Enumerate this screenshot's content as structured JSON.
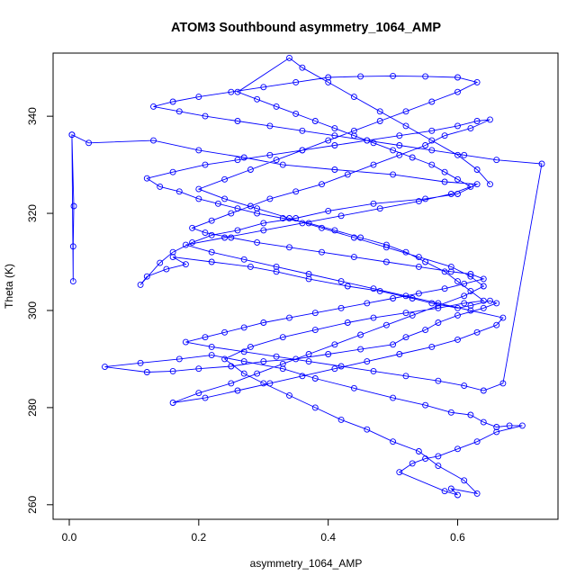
{
  "chart_data": {
    "type": "scatter",
    "title": "ATOM3 Southbound asymmetry_1064_AMP",
    "xlabel": "asymmetry_1064_AMP",
    "ylabel": "Theta (K)",
    "xlim": [
      -0.025,
      0.755
    ],
    "ylim": [
      257,
      353
    ],
    "x_ticks": [
      "0.0",
      "0.2",
      "0.4",
      "0.6"
    ],
    "y_ticks": [
      "260",
      "280",
      "300",
      "320",
      "340"
    ],
    "grid": false,
    "legend": "none",
    "marker": "open-circle",
    "connected": true,
    "color": "#0000ff",
    "series": [
      {
        "x": [
          0.004,
          0.007,
          0.006,
          0.006,
          0.004,
          0.03,
          0.13,
          0.2,
          0.27,
          0.33,
          0.41,
          0.5,
          0.58,
          0.63,
          0.6,
          0.55,
          0.47,
          0.4,
          0.35,
          0.3,
          0.26,
          0.22,
          0.19,
          0.16,
          0.14,
          0.11,
          0.12,
          0.15,
          0.18,
          0.16,
          0.22,
          0.28,
          0.32,
          0.37,
          0.43,
          0.48,
          0.53,
          0.56,
          0.6,
          0.62,
          0.65,
          0.66,
          0.64,
          0.6,
          0.57,
          0.55,
          0.52,
          0.5,
          0.45,
          0.4,
          0.35,
          0.3,
          0.25,
          0.2,
          0.16,
          0.12,
          0.055,
          0.11,
          0.17,
          0.22,
          0.27,
          0.33,
          0.38,
          0.44,
          0.5,
          0.55,
          0.59,
          0.62,
          0.64,
          0.66,
          0.68,
          0.7,
          0.66,
          0.63,
          0.6,
          0.57,
          0.55,
          0.53,
          0.51,
          0.58,
          0.6,
          0.59,
          0.63,
          0.61,
          0.57,
          0.54,
          0.5,
          0.46,
          0.42,
          0.38,
          0.34,
          0.3,
          0.27,
          0.24,
          0.28,
          0.33,
          0.38,
          0.43,
          0.47,
          0.52,
          0.57,
          0.61,
          0.64,
          0.62,
          0.6,
          0.58,
          0.55,
          0.52,
          0.49,
          0.45,
          0.41,
          0.37,
          0.33,
          0.29,
          0.26,
          0.23,
          0.2,
          0.17,
          0.14,
          0.12,
          0.16,
          0.21,
          0.26,
          0.31,
          0.36,
          0.41,
          0.46,
          0.51,
          0.56,
          0.6,
          0.63,
          0.65,
          0.62,
          0.58,
          0.55,
          0.51,
          0.47,
          0.43,
          0.39,
          0.35,
          0.31,
          0.28,
          0.25,
          0.22,
          0.19,
          0.21,
          0.25,
          0.29,
          0.34,
          0.39,
          0.44,
          0.49,
          0.54,
          0.59,
          0.62,
          0.64,
          0.61,
          0.58,
          0.54,
          0.5,
          0.46,
          0.42,
          0.38,
          0.34,
          0.3,
          0.27,
          0.24,
          0.21,
          0.18,
          0.22,
          0.27,
          0.32,
          0.37,
          0.42,
          0.47,
          0.52,
          0.57,
          0.61,
          0.64,
          0.67,
          0.73,
          0.66,
          0.61,
          0.56,
          0.51,
          0.46,
          0.41,
          0.36,
          0.31,
          0.26,
          0.21,
          0.17,
          0.13,
          0.16,
          0.2,
          0.25,
          0.3,
          0.35,
          0.4,
          0.45,
          0.5,
          0.55,
          0.6,
          0.63,
          0.6,
          0.56,
          0.52,
          0.48,
          0.44,
          0.4,
          0.36,
          0.32,
          0.28,
          0.24,
          0.2,
          0.24,
          0.29,
          0.34,
          0.39,
          0.44,
          0.49,
          0.54,
          0.59,
          0.62,
          0.64,
          0.61,
          0.57,
          0.53,
          0.49,
          0.45,
          0.41,
          0.37,
          0.33,
          0.29,
          0.25,
          0.2,
          0.16,
          0.21,
          0.26,
          0.31,
          0.36,
          0.41,
          0.46,
          0.51,
          0.56,
          0.6,
          0.63,
          0.66,
          0.67,
          0.62,
          0.57,
          0.52,
          0.47,
          0.42,
          0.37,
          0.32,
          0.27,
          0.22,
          0.18,
          0.24,
          0.3,
          0.36,
          0.42,
          0.48,
          0.54,
          0.59,
          0.62,
          0.6,
          0.58,
          0.56,
          0.53,
          0.5,
          0.47,
          0.44,
          0.41,
          0.38,
          0.35,
          0.32,
          0.29,
          0.26,
          0.34,
          0.36,
          0.4,
          0.44,
          0.48,
          0.52,
          0.56,
          0.6,
          0.63,
          0.65
        ],
        "y": [
          336.2,
          321.5,
          313.2,
          306,
          336.2,
          334.5,
          335,
          333,
          331.5,
          330,
          329,
          328,
          326.5,
          326,
          324,
          323,
          322,
          320.5,
          319,
          318,
          316.5,
          315.5,
          314,
          312,
          309.8,
          305.3,
          307,
          308.5,
          309.5,
          311,
          310,
          309,
          308,
          306.5,
          305,
          304,
          302.5,
          301.5,
          300.5,
          301,
          302,
          301.5,
          300.5,
          299,
          297.5,
          296,
          294.5,
          293,
          292,
          291,
          290,
          289.5,
          288.5,
          288,
          287.5,
          287.3,
          288.4,
          289.2,
          290,
          290.8,
          289.5,
          288,
          286,
          284,
          282,
          280.5,
          279,
          278.5,
          277,
          276,
          276.3,
          276.3,
          275,
          273,
          271.5,
          270,
          269.5,
          268.5,
          266.7,
          262.8,
          262,
          263.3,
          262.3,
          265,
          268,
          271,
          273,
          275.5,
          277.5,
          280,
          282.5,
          285,
          287,
          290,
          292.5,
          294.5,
          296,
          297.5,
          298.5,
          299.5,
          300.5,
          301.5,
          302,
          304,
          306,
          308,
          310,
          312,
          313.5,
          315,
          316.5,
          318,
          319,
          320,
          321,
          322,
          323,
          324.5,
          325.5,
          327.2,
          328.5,
          330,
          331,
          332,
          333,
          334,
          335,
          336,
          337,
          338,
          339,
          339.3,
          337.5,
          336,
          334,
          332,
          330,
          328,
          326,
          324.5,
          323,
          321.5,
          320,
          318.5,
          317,
          316,
          315,
          314,
          313,
          312,
          311,
          310,
          309,
          308,
          307.5,
          306.5,
          305.5,
          304.5,
          303.5,
          302.5,
          301.5,
          300.5,
          299.5,
          298.5,
          297.5,
          296.5,
          295.5,
          294.5,
          293.5,
          292.5,
          291.5,
          290.5,
          289.5,
          288.5,
          287.5,
          286.5,
          285.5,
          284.5,
          283.5,
          285,
          330.2,
          331,
          332,
          333,
          334,
          335,
          336,
          337,
          338,
          339,
          340,
          341,
          342,
          343,
          344,
          345,
          346,
          347,
          348,
          348.2,
          348.3,
          348.2,
          348,
          347,
          345,
          343,
          341,
          339,
          337,
          335,
          333,
          331,
          329,
          327,
          325,
          323,
          321,
          319,
          317,
          315,
          313,
          311,
          309,
          307,
          305,
          303,
          301,
          299,
          297,
          295,
          293,
          291,
          289,
          287,
          285,
          283,
          281,
          282,
          283.5,
          285,
          286.5,
          288,
          289.5,
          291,
          292.5,
          294,
          295.5,
          297,
          298.5,
          300,
          301.5,
          303,
          304.5,
          306,
          307.5,
          309,
          310.5,
          312,
          313.5,
          315,
          316.5,
          318,
          319.5,
          321,
          322.5,
          324,
          325.5,
          327,
          328.5,
          330,
          331.5,
          333,
          334.5,
          336,
          337.5,
          339,
          340.5,
          342,
          343.5,
          345,
          352,
          350,
          347,
          344,
          341,
          338,
          335,
          332,
          329,
          326
        ]
      }
    ]
  }
}
